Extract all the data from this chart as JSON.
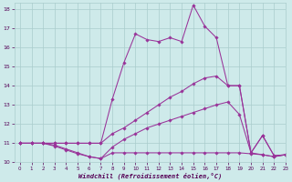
{
  "xlabel": "Windchill (Refroidissement éolien,°C)",
  "x_values": [
    0,
    1,
    2,
    3,
    4,
    5,
    6,
    7,
    8,
    9,
    10,
    11,
    12,
    13,
    14,
    15,
    16,
    17,
    18,
    19,
    20,
    21,
    22,
    23
  ],
  "line1_y": [
    11.0,
    11.0,
    11.0,
    10.85,
    10.65,
    10.45,
    10.3,
    10.2,
    10.5,
    10.5,
    10.5,
    10.5,
    10.5,
    10.5,
    10.5,
    10.5,
    10.5,
    10.5,
    10.5,
    10.5,
    10.45,
    10.4,
    10.3,
    10.4
  ],
  "line2_y": [
    11.0,
    11.0,
    11.0,
    10.9,
    10.7,
    10.5,
    10.3,
    10.2,
    10.8,
    11.2,
    11.5,
    11.8,
    12.0,
    12.2,
    12.4,
    12.6,
    12.8,
    13.0,
    13.15,
    12.5,
    10.5,
    10.4,
    10.3,
    10.4
  ],
  "line3_y": [
    11.0,
    11.0,
    11.0,
    11.0,
    11.0,
    11.0,
    11.0,
    11.0,
    11.5,
    11.8,
    12.2,
    12.6,
    13.0,
    13.4,
    13.7,
    14.1,
    14.4,
    14.5,
    14.0,
    14.0,
    10.5,
    11.4,
    10.35,
    10.4
  ],
  "line4_y": [
    11.0,
    11.0,
    11.0,
    11.0,
    11.0,
    11.0,
    11.0,
    11.0,
    13.3,
    15.2,
    16.7,
    16.4,
    16.3,
    16.5,
    16.3,
    18.2,
    17.1,
    16.5,
    14.0,
    14.0,
    10.5,
    11.4,
    10.35,
    10.4
  ],
  "line_color": "#993399",
  "bg_color": "#ceeaea",
  "grid_color": "#aacccc",
  "xlim": [
    -0.5,
    23
  ],
  "ylim": [
    10.0,
    18.3
  ],
  "yticks": [
    10,
    11,
    12,
    13,
    14,
    15,
    16,
    17,
    18
  ],
  "xticks": [
    0,
    1,
    2,
    3,
    4,
    5,
    6,
    7,
    8,
    9,
    10,
    11,
    12,
    13,
    14,
    15,
    16,
    17,
    18,
    19,
    20,
    21,
    22,
    23
  ]
}
